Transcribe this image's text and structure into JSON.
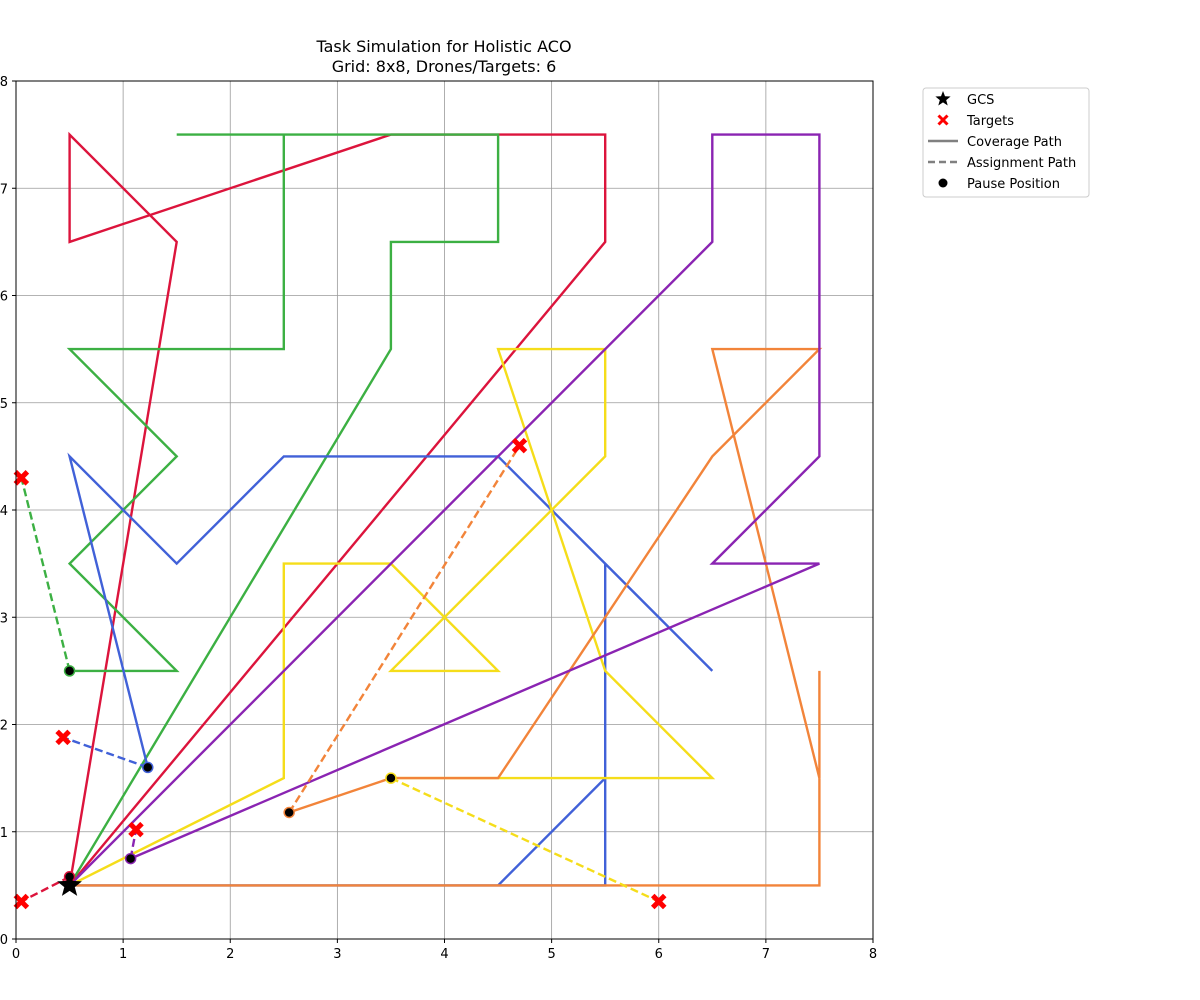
{
  "chart_data": {
    "type": "line",
    "title_lines": [
      "Task Simulation for Holistic ACO",
      "Grid: 8x8, Drones/Targets: 6"
    ],
    "xlim": [
      0,
      8
    ],
    "ylim": [
      0,
      8
    ],
    "xticks": [
      0,
      1,
      2,
      3,
      4,
      5,
      6,
      7,
      8
    ],
    "yticks": [
      0,
      1,
      2,
      3,
      4,
      5,
      6,
      7,
      8
    ],
    "grid": true,
    "legend_position": "outside top-right",
    "legend": [
      {
        "label": "GCS",
        "marker": "star",
        "color": "#000000"
      },
      {
        "label": "Targets",
        "marker": "x",
        "color": "#ff0000"
      },
      {
        "label": "Coverage Path",
        "marker": "solid-line",
        "color": "#808080"
      },
      {
        "label": "Assignment Path",
        "marker": "dashed-line",
        "color": "#808080"
      },
      {
        "label": "Pause Position",
        "marker": "dot",
        "color": "#000000"
      }
    ],
    "gcs": [
      0.5,
      0.5
    ],
    "targets": [
      [
        0.05,
        4.3
      ],
      [
        0.05,
        0.35
      ],
      [
        0.44,
        1.88
      ],
      [
        1.12,
        1.02
      ],
      [
        4.7,
        4.6
      ],
      [
        6.0,
        0.35
      ]
    ],
    "drones": [
      {
        "color": "#dc143c",
        "coverage": [
          [
            0.5,
            0.5
          ],
          [
            1.5,
            6.5
          ],
          [
            0.5,
            7.5
          ],
          [
            0.5,
            6.5
          ],
          [
            3.5,
            7.5
          ],
          [
            5.5,
            7.5
          ],
          [
            5.5,
            6.5
          ],
          [
            0.5,
            0.5
          ]
        ],
        "assignment": [
          [
            0.5,
            0.58
          ],
          [
            0.05,
            0.35
          ]
        ],
        "pause": [
          0.5,
          0.58
        ]
      },
      {
        "color": "#3cb043",
        "coverage": [
          [
            0.5,
            0.5
          ],
          [
            3.5,
            5.5
          ],
          [
            3.5,
            6.5
          ],
          [
            4.5,
            6.5
          ],
          [
            4.5,
            7.5
          ],
          [
            1.5,
            7.5
          ],
          [
            2.5,
            7.5
          ],
          [
            2.5,
            5.5
          ],
          [
            0.5,
            5.5
          ],
          [
            1.5,
            4.5
          ],
          [
            0.5,
            3.5
          ],
          [
            1.5,
            2.5
          ],
          [
            0.5,
            2.5
          ]
        ],
        "assignment": [
          [
            0.5,
            2.5
          ],
          [
            0.05,
            4.3
          ]
        ],
        "pause": [
          0.5,
          2.5
        ]
      },
      {
        "color": "#4161d8",
        "coverage": [
          [
            0.5,
            0.5
          ],
          [
            5.5,
            0.5
          ],
          [
            5.5,
            3.5
          ],
          [
            5.5,
            0.5
          ],
          [
            4.5,
            0.5
          ],
          [
            5.5,
            1.5
          ],
          [
            5.5,
            3.5
          ],
          [
            6.5,
            2.5
          ],
          [
            4.5,
            4.5
          ],
          [
            2.5,
            4.5
          ],
          [
            1.5,
            3.5
          ],
          [
            0.5,
            4.5
          ],
          [
            1.23,
            1.6
          ]
        ],
        "assignment": [
          [
            1.23,
            1.6
          ],
          [
            0.44,
            1.88
          ]
        ],
        "pause": [
          1.23,
          1.6
        ]
      },
      {
        "color": "#f5dd1a",
        "coverage": [
          [
            0.5,
            0.5
          ],
          [
            2.5,
            1.5
          ],
          [
            2.5,
            3.5
          ],
          [
            3.5,
            3.5
          ],
          [
            4.5,
            2.5
          ],
          [
            3.5,
            2.5
          ],
          [
            5.5,
            4.5
          ],
          [
            5.5,
            5.5
          ],
          [
            4.5,
            5.5
          ],
          [
            5.5,
            2.5
          ],
          [
            6.5,
            1.5
          ],
          [
            3.5,
            1.5
          ]
        ],
        "assignment": [
          [
            3.5,
            1.5
          ],
          [
            6.0,
            0.35
          ]
        ],
        "pause": [
          3.5,
          1.5
        ]
      },
      {
        "color": "#f2843a",
        "coverage": [
          [
            0.5,
            0.5
          ],
          [
            7.5,
            0.5
          ],
          [
            7.5,
            2.5
          ],
          [
            7.5,
            1.5
          ],
          [
            6.5,
            5.5
          ],
          [
            7.5,
            5.5
          ],
          [
            6.5,
            4.5
          ],
          [
            4.5,
            1.5
          ],
          [
            3.5,
            1.5
          ],
          [
            2.55,
            1.18
          ]
        ],
        "assignment": [
          [
            2.55,
            1.18
          ],
          [
            4.7,
            4.6
          ]
        ],
        "pause": [
          2.55,
          1.18
        ]
      },
      {
        "color": "#8a24b2",
        "coverage": [
          [
            0.5,
            0.5
          ],
          [
            6.5,
            6.5
          ],
          [
            6.5,
            7.5
          ],
          [
            7.5,
            7.5
          ],
          [
            7.5,
            4.5
          ],
          [
            6.5,
            3.5
          ],
          [
            7.5,
            3.5
          ],
          [
            1.07,
            0.75
          ]
        ],
        "assignment": [
          [
            1.07,
            0.75
          ],
          [
            1.12,
            1.02
          ]
        ],
        "pause": [
          1.07,
          0.75
        ]
      }
    ]
  }
}
